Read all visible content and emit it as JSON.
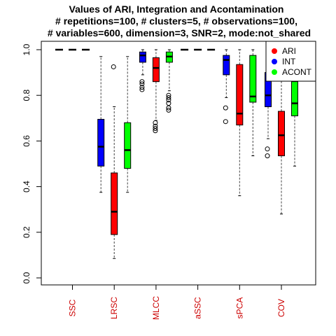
{
  "chart_data": {
    "type": "boxplot",
    "title": [
      "Values of ARI, Integration and Acontamination",
      "# repetitions=100, # clusters=5, # observations=100,",
      "# variables=600, dimension=3, SNR=2, mode:not_shared"
    ],
    "xlabel": "",
    "ylabel": "",
    "ylim": [
      0,
      1
    ],
    "yticks": [
      "0.0",
      "0.2",
      "0.4",
      "0.6",
      "0.8",
      "1.0"
    ],
    "categories": [
      "SSC",
      "LRSC",
      "MLCC",
      "aSSC",
      "sPCA",
      "COV"
    ],
    "category_color": "#cc0000",
    "legend": {
      "placement": "top-right",
      "items": [
        {
          "label": "ARI",
          "color": "#ff0000"
        },
        {
          "label": "INT",
          "color": "#0000ff"
        },
        {
          "label": "ACONT",
          "color": "#00ff00"
        }
      ]
    },
    "series": [
      {
        "name": "ARI",
        "color": "#ff0000",
        "boxes": [
          {
            "median": 1.0,
            "q1": 1.0,
            "q3": 1.0,
            "wlo": 1.0,
            "whi": 1.0,
            "outliers": []
          },
          {
            "median": 0.29,
            "q1": 0.19,
            "q3": 0.46,
            "wlo": 0.085,
            "whi": 0.75,
            "outliers": [
              0.925
            ]
          },
          {
            "median": 0.92,
            "q1": 0.86,
            "q3": 0.965,
            "wlo": 0.69,
            "whi": 1.0,
            "outliers": [
              0.68,
              0.665,
              0.655,
              0.645
            ]
          },
          {
            "median": 1.0,
            "q1": 1.0,
            "q3": 1.0,
            "wlo": 1.0,
            "whi": 1.0,
            "outliers": []
          },
          {
            "median": 0.72,
            "q1": 0.67,
            "q3": 0.935,
            "wlo": 0.36,
            "whi": 1.0,
            "outliers": []
          },
          {
            "median": 0.625,
            "q1": 0.535,
            "q3": 0.73,
            "wlo": 0.28,
            "whi": 0.99,
            "outliers": []
          }
        ]
      },
      {
        "name": "INT",
        "color": "#0000ff",
        "boxes": [
          {
            "median": 1.0,
            "q1": 1.0,
            "q3": 1.0,
            "wlo": 1.0,
            "whi": 1.0,
            "outliers": []
          },
          {
            "median": 0.575,
            "q1": 0.49,
            "q3": 0.695,
            "wlo": 0.375,
            "whi": 0.97,
            "outliers": []
          },
          {
            "median": 0.975,
            "q1": 0.945,
            "q3": 0.99,
            "wlo": 0.89,
            "whi": 1.0,
            "outliers": [
              0.86,
              0.85,
              0.835,
              0.825
            ]
          },
          {
            "median": 1.0,
            "q1": 1.0,
            "q3": 1.0,
            "wlo": 1.0,
            "whi": 1.0,
            "outliers": []
          },
          {
            "median": 0.955,
            "q1": 0.89,
            "q3": 0.975,
            "wlo": 0.79,
            "whi": 1.0,
            "outliers": [
              0.745,
              0.685
            ]
          },
          {
            "median": 0.8,
            "q1": 0.75,
            "q3": 0.9,
            "wlo": 0.61,
            "whi": 0.97,
            "outliers": [
              0.565,
              0.535
            ]
          }
        ]
      },
      {
        "name": "ACONT",
        "color": "#00ff00",
        "boxes": [
          {
            "median": 1.0,
            "q1": 1.0,
            "q3": 1.0,
            "wlo": 1.0,
            "whi": 1.0,
            "outliers": []
          },
          {
            "median": 0.56,
            "q1": 0.48,
            "q3": 0.68,
            "wlo": 0.375,
            "whi": 0.97,
            "outliers": []
          },
          {
            "median": 0.97,
            "q1": 0.945,
            "q3": 0.99,
            "wlo": 0.82,
            "whi": 1.0,
            "outliers": [
              0.8,
              0.79,
              0.78,
              0.765,
              0.745,
              0.735
            ]
          },
          {
            "median": 1.0,
            "q1": 1.0,
            "q3": 1.0,
            "wlo": 1.0,
            "whi": 1.0,
            "outliers": []
          },
          {
            "median": 0.795,
            "q1": 0.77,
            "q3": 0.975,
            "wlo": 0.535,
            "whi": 1.0,
            "outliers": []
          },
          {
            "median": 0.765,
            "q1": 0.71,
            "q3": 0.86,
            "wlo": 0.49,
            "whi": 0.97,
            "outliers": []
          }
        ]
      }
    ]
  }
}
